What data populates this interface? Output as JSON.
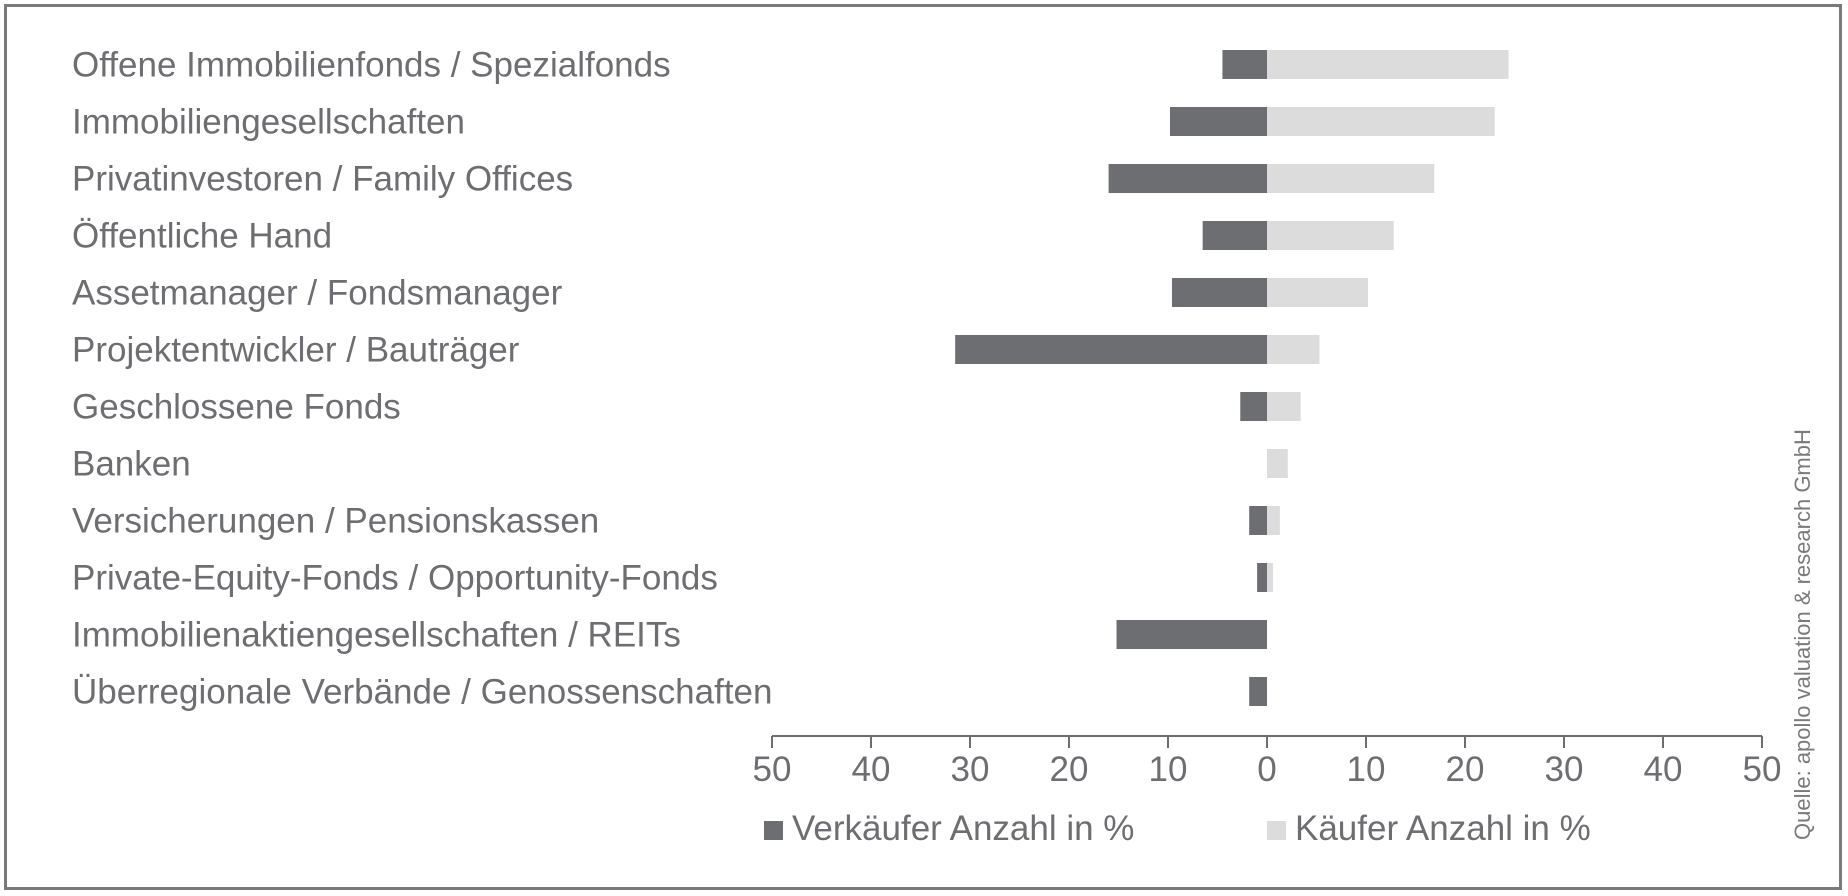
{
  "chart_data": {
    "type": "bar",
    "orientation": "horizontal-diverging",
    "categories": [
      "Offene Immobilienfonds / Spezialfonds",
      "Immobiliengesellschaften",
      "Privatinvestoren / Family Offices",
      "Öffentliche Hand",
      "Assetmanager / Fondsmanager",
      "Projektentwickler / Bauträger",
      "Geschlossene Fonds",
      "Banken",
      "Versicherungen / Pensionskassen",
      "Private-Equity-Fonds / Opportunity-Fonds",
      "Immobilienaktiengesellschaften / REITs",
      "Überregionale Verbände / Genossenschaften"
    ],
    "series": [
      {
        "name": "Verkäufer Anzahl in %",
        "color": "#6d6e71",
        "values": [
          4.5,
          9.8,
          16.0,
          6.5,
          9.6,
          31.5,
          2.7,
          0,
          1.8,
          1.0,
          15.2,
          1.8
        ]
      },
      {
        "name": "Käufer Anzahl in %",
        "color": "#dcdcdc",
        "values": [
          24.4,
          23.0,
          16.9,
          12.8,
          10.2,
          5.3,
          3.4,
          2.1,
          1.3,
          0.6,
          0,
          0
        ]
      }
    ],
    "xlim": [
      -50,
      50
    ],
    "x_ticks": [
      -50,
      -40,
      -30,
      -20,
      -10,
      0,
      10,
      20,
      30,
      40,
      50
    ],
    "x_tick_labels": [
      "50",
      "40",
      "30",
      "20",
      "10",
      "0",
      "10",
      "20",
      "30",
      "40",
      "50"
    ],
    "xlabel": "",
    "ylabel": "",
    "legend": [
      "Verkäufer Anzahl in %",
      "Käufer Anzahl in %"
    ],
    "legend_position": "bottom",
    "source": "Quelle: apollo valuation & research GmbH"
  }
}
